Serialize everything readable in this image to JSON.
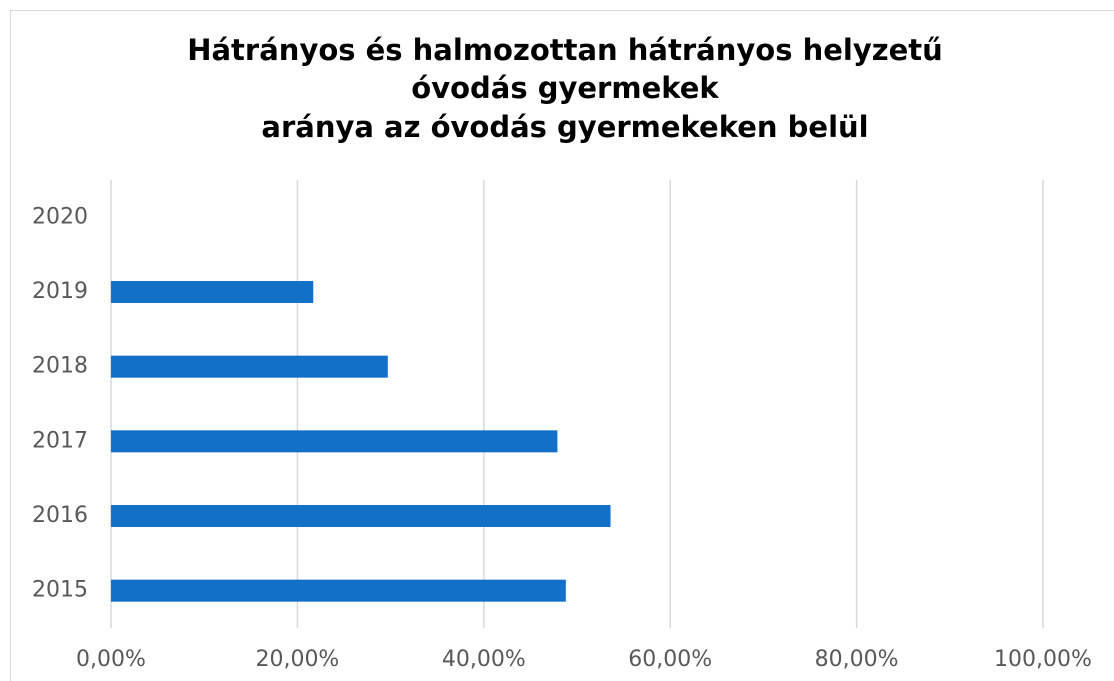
{
  "chart_data": {
    "type": "bar",
    "orientation": "horizontal",
    "title": [
      "Hátrányos és halmozottan hátrányos helyzetű",
      "óvodás gyermekek",
      "aránya az óvodás gyermekeken belül"
    ],
    "categories": [
      "2015",
      "2016",
      "2017",
      "2018",
      "2019",
      "2020"
    ],
    "values": [
      48.8,
      53.6,
      47.9,
      29.7,
      21.7,
      null
    ],
    "color": "#1270c8",
    "xlim": [
      0,
      100
    ],
    "xticks": [
      {
        "value": 0,
        "label": "0,00%"
      },
      {
        "value": 20,
        "label": "20,00%"
      },
      {
        "value": 40,
        "label": "40,00%"
      },
      {
        "value": 60,
        "label": "60,00%"
      },
      {
        "value": 80,
        "label": "80,00%"
      },
      {
        "value": 100,
        "label": "100,00%"
      }
    ],
    "grid": true
  }
}
